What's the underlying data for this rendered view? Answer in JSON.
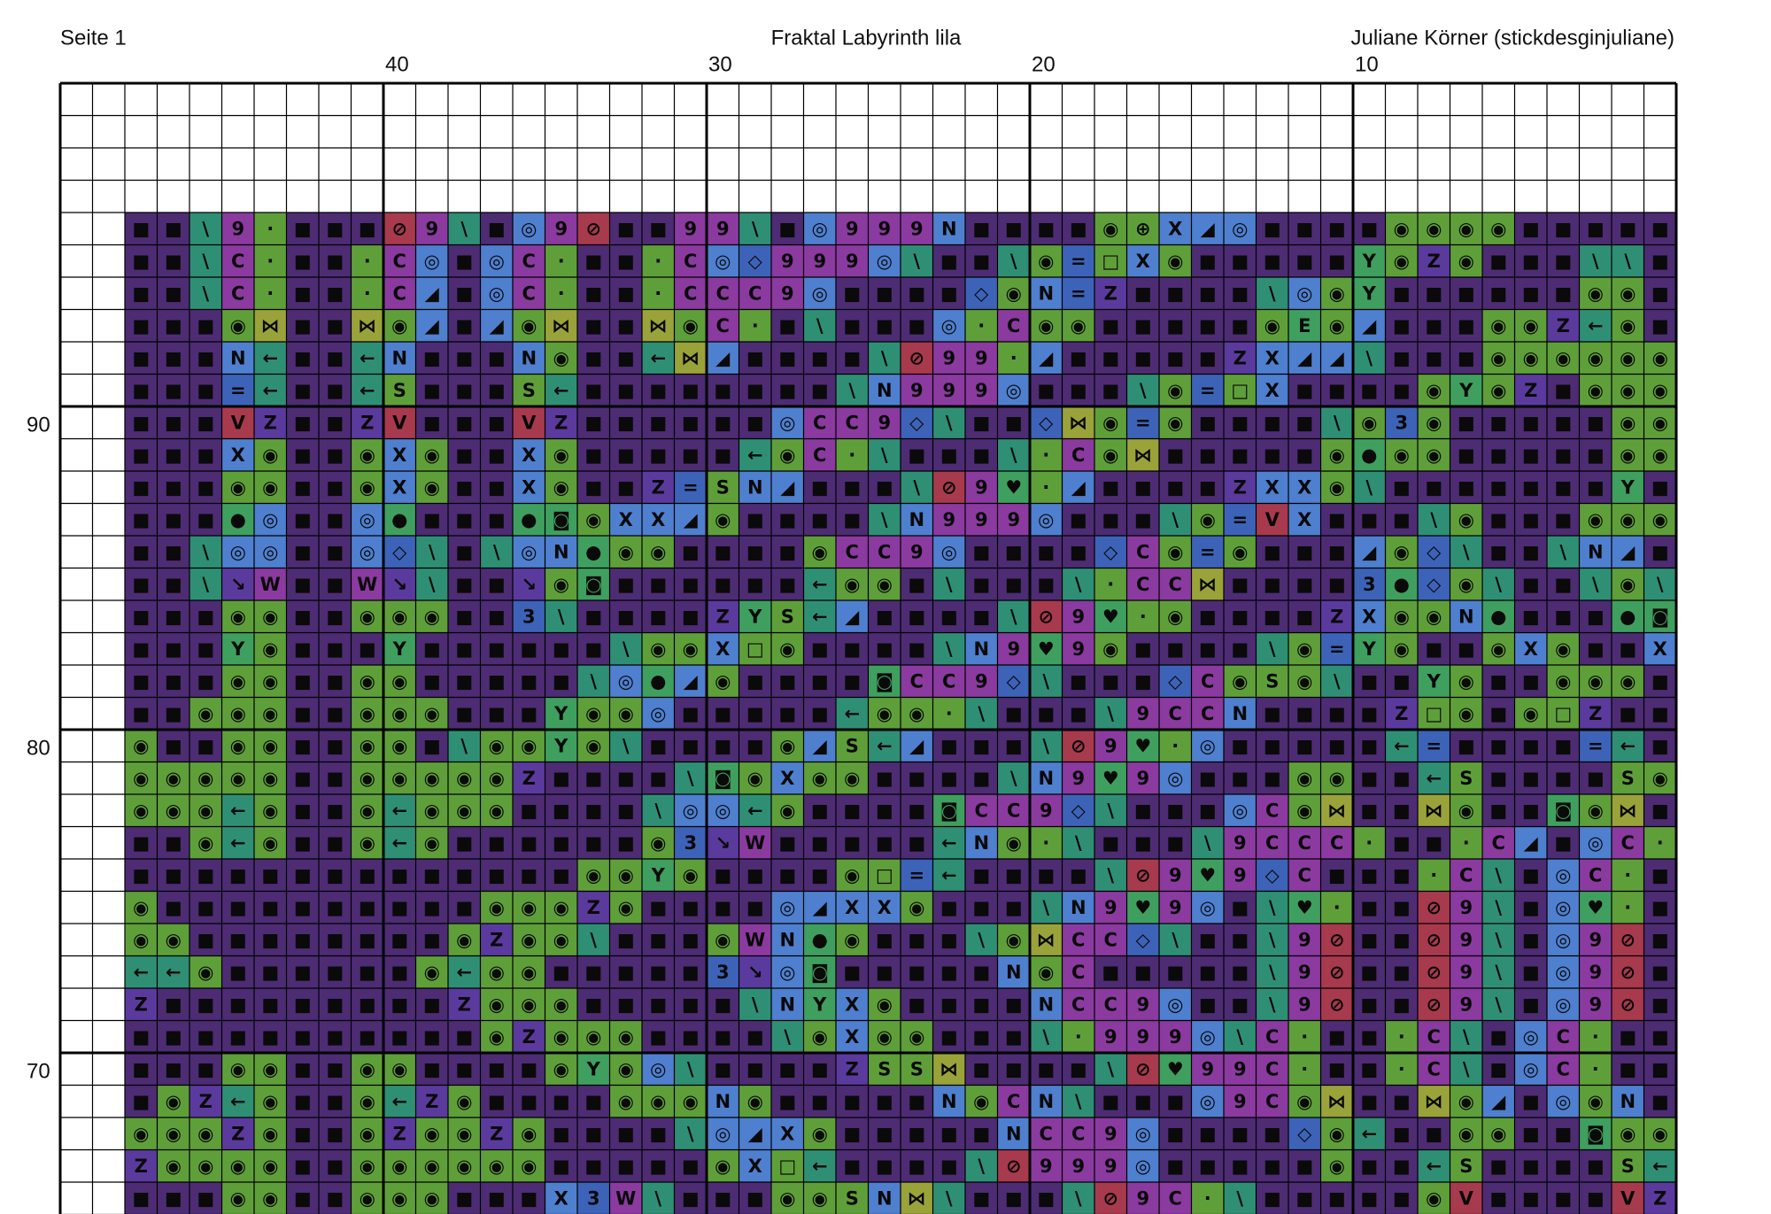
{
  "header": {
    "page": "Seite 1",
    "title": "Fraktal Labyrinth lila",
    "author": "Juliane Körner (stickdesginjuliane)"
  },
  "column_numbers": [
    "40",
    "30",
    "20",
    "10"
  ],
  "row_numbers": [
    "90",
    "80",
    "70"
  ],
  "pattern_rows": [
    "■■\\9·■■■⊘9\\■◎9⊘■■99\\■◎999N■■■■◉⊕X◢◎■■■■◉◉◉◉■■■■■",
    "■■\\C·■■·C◎■◎C·■■·C◎◇999◎\\■■\\◉=□X◉■■■■■Y◉Z◉■■■\\\\■",
    "■■\\C·■■·C◢■◎C·■■·CCC9◎■■■■◇◉N=Z■■■■\\◎◉Y■■■■■■◉◉■",
    "■■■◉⋈■■⋈◉◢■◢◉⋈■■⋈◉C·■\\■■■◎·C◉◉■■■■■◉E◉◢■■■◉◉Z←◉■",
    "■■■N←■■←N■■■N◉■■←⋈◢■■■■\\⊘99·◢■■■■■ZX◢◢\\■■■◉◉◉◉◉◉",
    "■■■=←■■←S■■■S←■■■■■■■■\\N999◎■■■\\◉=□X■■■■◉Y◉Z■◉◉◉",
    "■■■VZ■■ZV■■■VZ■■■■■■◎CC9◇\\■■◇⋈◉=◉■■■■\\◉3◉■■■■■◉◉",
    "■■■X◉■■◉X◉■■X◉■■■■■←◉C·\\■■■\\·C◉⋈■■■■■◉●◉◉■■■■■◉◉",
    "■■■◉◉■■◉X◉■■X◉■■Z=SN◢■■■\\⊘9♥·◢■■■■ZXX◉\\■■■■■■■Y■",
    "■■■●◎■■◎●■■■●◙◉XX◢◉■■■■\\N999◎■■■\\◉=VX■■■\\◉■■■◉◉◉",
    "■■\\◎◎■■◎◇\\■\\◎N●◉◉■■■■◉CC9◎■■■■◇C◉=◉■■■◢◉◇\\■■\\N◢■",
    "■■\\↘W■■W↘\\■■↘◉◙■■■■■■←◉◉■\\■■■\\·CC⋈■■■■3●◇◉\\■■\\◉\\",
    "■■■◉◉■■◉◉◉■■3\\■■■■ZYS←◢■■■■\\⊘9♥·◉■■■■ZX◉◉N●■■■●◙",
    "■■■Y◉■■■Y■■■■■■\\◉◉X□◉■■■■\\N9♥9◉■■■■\\◉=Y◉■■◉X◉■■X",
    "■■■◉◉■■◉◉■■■■■\\◎●◢◉■■■■◙CC9◇\\■■■◇C◉S◉\\■■Y◉■■◉◉◉■",
    "■■◉◉◉■■◉◉◉■■■Y◉◉◎■■■■■←◉◉·\\■■■\\9CCN■■■■Z□◉■◉□Z■■",
    "◉■■◉◉■■◉◉■\\◉◉Y◉\\■■■■◉◢S←◢■■■\\⊘9♥·◎■■■■■←=■■■■=←■",
    "◉◉◉◉◉■■◉◉◉◉◉Z■■■■\\◙◉X◉◉■■■■\\N9♥9◎■■■◉◉■■←S■■■■S◉",
    "◉◉◉←◉■■◉←◉◉◉■■■■\\◎◎←◉■■■■◙CC9◇\\■■■◎C◉⋈■■⋈◉■■◙◉⋈■",
    "■■◉←◉■■◉←◉■■■■■■◉3↘W■■■■■←N◉·\\■■■\\9CCC·■■·C◢■◎C·",
    "■■■■■■■■■■■■■■◉◉Y◉■■■■◉□=←■■■■\\⊘9♥9◇C■■■·C\\■◎C·■",
    "◉■■■■■■■■■■◉◉◉Z◉■■■■◎◢XX◉■■■\\N9♥9◎■\\♥·■■⊘9\\■◎♥·■",
    "◉◉■■■■■■■■◉Z◉◉\\■■■◉WN●◉■■■\\◉⋈CC◇\\■■\\9⊘■■⊘9\\■◎9⊘■",
    "←←◉■■■■■■◉←◉◉■■■■■3↘◎◙■■■■■N◉C■■■■■\\9⊘■■⊘9\\■◎9⊘■",
    "Z■■■■■■■■■Z◉◉◉■■■■■\\NYX◉■■■■NCC9◎■■\\9⊘■■⊘9\\■◎9⊘■",
    "■■■■■■■■■■■◉Z◉◉◉■■■■\\◉X◉◉■■■\\·999◎\\C·■■·C\\■◎C·■■",
    "■■■◉◉■■◉◉■■■■◉Y◉◎\\■■■■ZSS⋈■■■■\\⊘♥99C·■■·C\\■◎C·■■",
    "■◉Z←◉■■◉←Z◉■■■■◉◉◉N◉■■■■■N◉CN\\■■■◎9C◉⋈■■⋈◉◢■◎◉N■",
    "◉◉◉Z◉■■◉Z◉◉Z◉■■■■\\◎◢X◉■■■■■NCC9◎■■■■◇◉←■■◉◉■■◙◉◉",
    "Z◉◉◉◉■■◉◉◉◉◉◉■■■■■◉X□←■■■■\\⊘999◎■■■■■◉■■←S■■■■S←",
    "■■■◉◉■■◉◉◉■■■X3W\\■■■◉◉SN⋈\\■■■\\⊘9C·\\■■■■■◉V■■■■VZ"
  ]
}
